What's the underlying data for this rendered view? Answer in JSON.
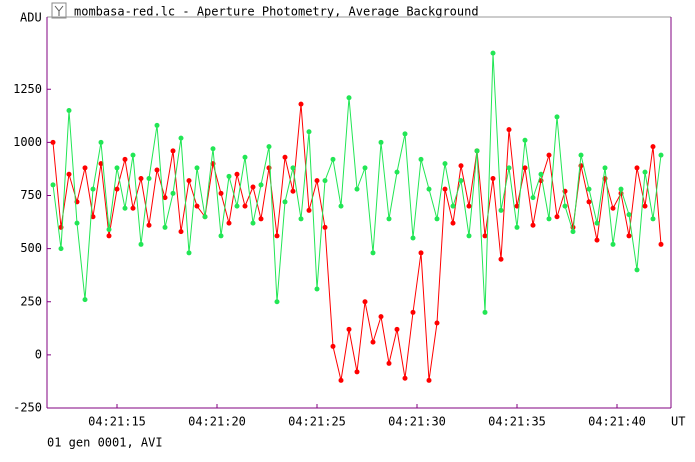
{
  "chart_data": {
    "type": "line",
    "title": "mombasa-red.lc - Aperture Photometry, Average Background",
    "y_label": "ADU",
    "x_label": "UT",
    "footer": "01 gen 0001, AVI",
    "xlim": [
      11.5,
      42.7
    ],
    "xticks": [
      {
        "value": 15,
        "label": "04:21:15"
      },
      {
        "value": 20,
        "label": "04:21:20"
      },
      {
        "value": 25,
        "label": "04:21:25"
      },
      {
        "value": 30,
        "label": "04:21:30"
      },
      {
        "value": 35,
        "label": "04:21:35"
      },
      {
        "value": 40,
        "label": "04:21:40"
      }
    ],
    "ylim": [
      -250,
      1590
    ],
    "yticks": [
      -250,
      0,
      250,
      500,
      750,
      1000,
      1250
    ],
    "x": [
      11.8,
      12.2,
      12.6,
      13.0,
      13.4,
      13.8,
      14.2,
      14.6,
      15.0,
      15.4,
      15.8,
      16.2,
      16.6,
      17.0,
      17.4,
      17.8,
      18.2,
      18.6,
      19.0,
      19.4,
      19.8,
      20.2,
      20.6,
      21.0,
      21.4,
      21.8,
      22.2,
      22.6,
      23.0,
      23.4,
      23.8,
      24.2,
      24.6,
      25.0,
      25.4,
      25.8,
      26.2,
      26.6,
      27.0,
      27.4,
      27.8,
      28.2,
      28.6,
      29.0,
      29.4,
      29.8,
      30.2,
      30.6,
      31.0,
      31.4,
      31.8,
      32.2,
      32.6,
      33.0,
      33.4,
      33.8,
      34.2,
      34.6,
      35.0,
      35.4,
      35.8,
      36.2,
      36.6,
      37.0,
      37.4,
      37.8,
      38.2,
      38.6,
      39.0,
      39.4,
      39.8,
      40.2,
      40.6,
      41.0,
      41.4,
      41.8,
      42.2
    ],
    "series": [
      {
        "color": "#ff0000",
        "values": [
          1000,
          600,
          850,
          720,
          880,
          650,
          900,
          560,
          780,
          920,
          690,
          830,
          610,
          870,
          740,
          960,
          580,
          820,
          700,
          650,
          900,
          760,
          620,
          850,
          700,
          790,
          640,
          880,
          560,
          930,
          770,
          1180,
          680,
          820,
          600,
          40,
          -120,
          120,
          -80,
          250,
          60,
          180,
          -40,
          120,
          -110,
          200,
          480,
          -120,
          150,
          780,
          620,
          890,
          700,
          960,
          560,
          830,
          450,
          1060,
          700,
          880,
          610,
          820,
          940,
          650,
          770,
          600,
          890,
          720,
          540,
          830,
          690,
          760,
          560,
          880,
          700,
          980,
          520
        ]
      },
      {
        "color": "#22e655",
        "values": [
          800,
          500,
          1150,
          620,
          260,
          780,
          1000,
          590,
          880,
          690,
          940,
          520,
          830,
          1080,
          600,
          760,
          1020,
          480,
          880,
          650,
          970,
          560,
          840,
          700,
          930,
          620,
          800,
          980,
          250,
          720,
          880,
          640,
          1050,
          310,
          820,
          920,
          700,
          1210,
          780,
          880,
          480,
          1000,
          640,
          860,
          1040,
          550,
          920,
          780,
          640,
          900,
          700,
          820,
          560,
          960,
          200,
          1420,
          680,
          880,
          600,
          1010,
          740,
          850,
          640,
          1120,
          700,
          580,
          940,
          780,
          620,
          880,
          520,
          780,
          660,
          400,
          860,
          640,
          940
        ]
      }
    ]
  }
}
